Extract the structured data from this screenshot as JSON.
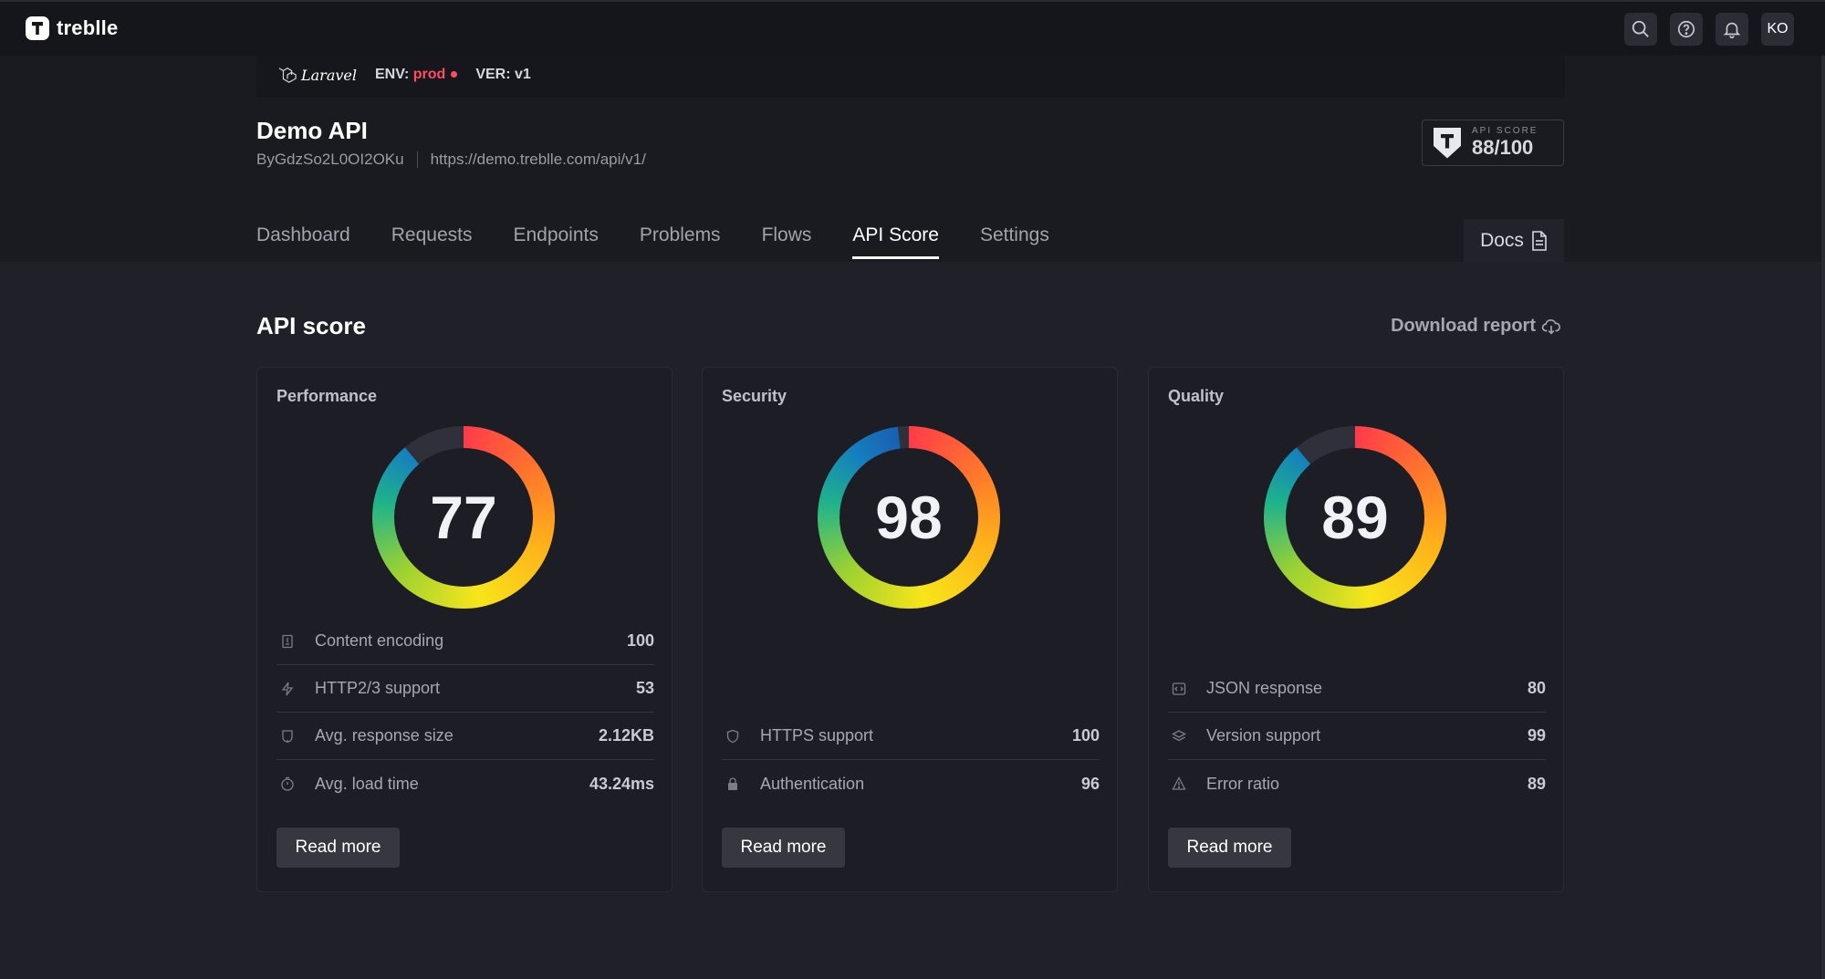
{
  "app": {
    "logo_text": "treblle",
    "avatar": "KO"
  },
  "project": {
    "framework": "Laravel",
    "env_label": "ENV:",
    "env_value": "prod",
    "ver_label": "VER:",
    "ver_value": "v1",
    "title": "Demo API",
    "id": "ByGdzSo2L0OI2OKu",
    "url": "https://demo.treblle.com/api/v1/",
    "badge_label": "API SCORE",
    "badge_value": "88/100"
  },
  "tabs": [
    {
      "label": "Dashboard",
      "active": false
    },
    {
      "label": "Requests",
      "active": false
    },
    {
      "label": "Endpoints",
      "active": false
    },
    {
      "label": "Problems",
      "active": false
    },
    {
      "label": "Flows",
      "active": false
    },
    {
      "label": "API Score",
      "active": true
    },
    {
      "label": "Settings",
      "active": false
    }
  ],
  "docs_label": "Docs",
  "section": {
    "title": "API score",
    "download_label": "Download report"
  },
  "cards": [
    {
      "title": "Performance",
      "score": "77",
      "score_fraction": 0.77,
      "metrics": [
        {
          "icon": "document-icon",
          "label": "Content encoding",
          "value": "100"
        },
        {
          "icon": "bolt-icon",
          "label": "HTTP2/3 support",
          "value": "53"
        },
        {
          "icon": "response-size-icon",
          "label": "Avg. response size",
          "value": "2.12KB"
        },
        {
          "icon": "stopwatch-icon",
          "label": "Avg. load time",
          "value": "43.24ms"
        }
      ],
      "button": "Read more"
    },
    {
      "title": "Security",
      "score": "98",
      "score_fraction": 0.98,
      "metrics": [
        {
          "icon": "shield-icon",
          "label": "HTTPS support",
          "value": "100"
        },
        {
          "icon": "lock-icon",
          "label": "Authentication",
          "value": "96"
        }
      ],
      "button": "Read more"
    },
    {
      "title": "Quality",
      "score": "89",
      "score_fraction": 0.89,
      "metrics": [
        {
          "icon": "json-icon",
          "label": "JSON response",
          "value": "80"
        },
        {
          "icon": "layers-icon",
          "label": "Version support",
          "value": "99"
        },
        {
          "icon": "warning-icon",
          "label": "Error ratio",
          "value": "89"
        }
      ],
      "button": "Read more"
    }
  ]
}
